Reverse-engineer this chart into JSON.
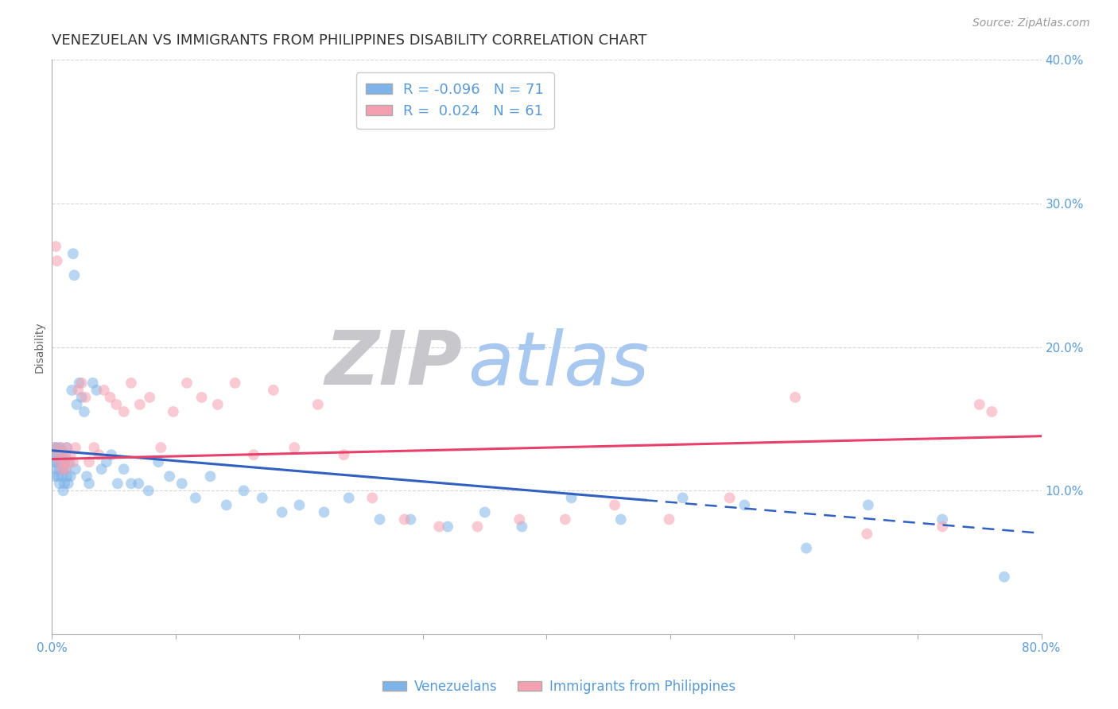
{
  "title": "VENEZUELAN VS IMMIGRANTS FROM PHILIPPINES DISABILITY CORRELATION CHART",
  "source": "Source: ZipAtlas.com",
  "ylabel": "Disability",
  "xlim": [
    0.0,
    0.8
  ],
  "ylim": [
    0.0,
    0.4
  ],
  "blue_color": "#7EB3E8",
  "pink_color": "#F5A0B0",
  "blue_line_color": "#3060C0",
  "pink_line_color": "#E8406A",
  "zip_watermark_color": "#C8C8CC",
  "atlas_watermark_color": "#A8C8F0",
  "legend_label_venezuelans": "Venezuelans",
  "legend_label_philippines": "Immigrants from Philippines",
  "blue_intercept": 0.128,
  "blue_slope": -0.072,
  "pink_intercept": 0.122,
  "pink_slope": 0.02,
  "venezuelan_x": [
    0.001,
    0.002,
    0.002,
    0.003,
    0.003,
    0.004,
    0.004,
    0.005,
    0.005,
    0.006,
    0.006,
    0.007,
    0.007,
    0.008,
    0.008,
    0.009,
    0.009,
    0.01,
    0.01,
    0.011,
    0.011,
    0.012,
    0.012,
    0.013,
    0.014,
    0.015,
    0.016,
    0.017,
    0.018,
    0.019,
    0.02,
    0.022,
    0.024,
    0.026,
    0.028,
    0.03,
    0.033,
    0.036,
    0.04,
    0.044,
    0.048,
    0.053,
    0.058,
    0.064,
    0.07,
    0.078,
    0.086,
    0.095,
    0.105,
    0.116,
    0.128,
    0.141,
    0.155,
    0.17,
    0.186,
    0.2,
    0.22,
    0.24,
    0.265,
    0.29,
    0.32,
    0.35,
    0.38,
    0.42,
    0.46,
    0.51,
    0.56,
    0.61,
    0.66,
    0.72,
    0.77
  ],
  "venezuelan_y": [
    0.12,
    0.13,
    0.11,
    0.125,
    0.115,
    0.13,
    0.12,
    0.11,
    0.125,
    0.115,
    0.105,
    0.12,
    0.13,
    0.11,
    0.125,
    0.1,
    0.115,
    0.12,
    0.105,
    0.115,
    0.125,
    0.13,
    0.11,
    0.105,
    0.12,
    0.11,
    0.17,
    0.265,
    0.25,
    0.115,
    0.16,
    0.175,
    0.165,
    0.155,
    0.11,
    0.105,
    0.175,
    0.17,
    0.115,
    0.12,
    0.125,
    0.105,
    0.115,
    0.105,
    0.105,
    0.1,
    0.12,
    0.11,
    0.105,
    0.095,
    0.11,
    0.09,
    0.1,
    0.095,
    0.085,
    0.09,
    0.085,
    0.095,
    0.08,
    0.08,
    0.075,
    0.085,
    0.075,
    0.095,
    0.08,
    0.095,
    0.09,
    0.06,
    0.09,
    0.08,
    0.04
  ],
  "philippines_x": [
    0.002,
    0.003,
    0.004,
    0.005,
    0.006,
    0.007,
    0.008,
    0.009,
    0.01,
    0.011,
    0.012,
    0.013,
    0.015,
    0.017,
    0.019,
    0.021,
    0.024,
    0.027,
    0.03,
    0.034,
    0.038,
    0.042,
    0.047,
    0.052,
    0.058,
    0.064,
    0.071,
    0.079,
    0.088,
    0.098,
    0.109,
    0.121,
    0.134,
    0.148,
    0.163,
    0.179,
    0.196,
    0.215,
    0.236,
    0.259,
    0.285,
    0.313,
    0.344,
    0.378,
    0.415,
    0.455,
    0.499,
    0.548,
    0.601,
    0.659,
    0.72,
    0.75,
    0.76
  ],
  "philippines_y": [
    0.13,
    0.27,
    0.26,
    0.125,
    0.12,
    0.13,
    0.115,
    0.125,
    0.12,
    0.115,
    0.13,
    0.12,
    0.125,
    0.12,
    0.13,
    0.17,
    0.175,
    0.165,
    0.12,
    0.13,
    0.125,
    0.17,
    0.165,
    0.16,
    0.155,
    0.175,
    0.16,
    0.165,
    0.13,
    0.155,
    0.175,
    0.165,
    0.16,
    0.175,
    0.125,
    0.17,
    0.13,
    0.16,
    0.125,
    0.095,
    0.08,
    0.075,
    0.075,
    0.08,
    0.08,
    0.09,
    0.08,
    0.095,
    0.165,
    0.07,
    0.075,
    0.16,
    0.155
  ],
  "marker_size": 100,
  "alpha": 0.55,
  "title_fontsize": 13,
  "axis_label_fontsize": 10,
  "tick_fontsize": 11,
  "source_fontsize": 10,
  "bg_color": "#FFFFFF",
  "grid_color": "#CCCCCC",
  "tick_color": "#5B9BD5"
}
